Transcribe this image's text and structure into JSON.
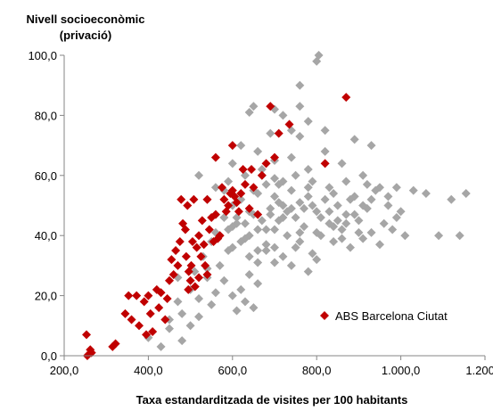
{
  "chart_data": {
    "type": "scatter",
    "title": "",
    "ylabel_line1": "Nivell socioeconòmic",
    "ylabel_line2": "(privació)",
    "xlabel": "Taxa estandarditzada de visites per 100 habitants",
    "xlim": [
      200,
      1200
    ],
    "ylim": [
      0,
      100
    ],
    "x_ticks": [
      {
        "value": 200,
        "label": "200,0"
      },
      {
        "value": 400,
        "label": "400,0"
      },
      {
        "value": 600,
        "label": "600,0"
      },
      {
        "value": 800,
        "label": "800,0"
      },
      {
        "value": 1000,
        "label": "1.000,0"
      },
      {
        "value": 1200,
        "label": "1.200,0"
      }
    ],
    "y_ticks": [
      {
        "value": 0,
        "label": "0,0"
      },
      {
        "value": 20,
        "label": "20,0"
      },
      {
        "value": 40,
        "label": "40,0"
      },
      {
        "value": 60,
        "label": "60,0"
      },
      {
        "value": 80,
        "label": "80,0"
      },
      {
        "value": 100,
        "label": "100,0"
      }
    ],
    "grid": false,
    "legend_position": "bottom-right",
    "series": [
      {
        "key": "others",
        "color": "#a6a6a6",
        "marker": "diamond",
        "points": [
          [
            400,
            6
          ],
          [
            430,
            3
          ],
          [
            450,
            12
          ],
          [
            470,
            18
          ],
          [
            480,
            14
          ],
          [
            500,
            22
          ],
          [
            510,
            28
          ],
          [
            520,
            19
          ],
          [
            530,
            33
          ],
          [
            540,
            26
          ],
          [
            550,
            38
          ],
          [
            560,
            41
          ],
          [
            570,
            30
          ],
          [
            580,
            46
          ],
          [
            590,
            35
          ],
          [
            600,
            50
          ],
          [
            610,
            44
          ],
          [
            620,
            52
          ],
          [
            630,
            39
          ],
          [
            640,
            48
          ],
          [
            650,
            55
          ],
          [
            660,
            42
          ],
          [
            670,
            60
          ],
          [
            680,
            37
          ],
          [
            690,
            47
          ],
          [
            700,
            53
          ],
          [
            710,
            45
          ],
          [
            720,
            58
          ],
          [
            730,
            40
          ],
          [
            740,
            49
          ],
          [
            750,
            36
          ],
          [
            760,
            51
          ],
          [
            770,
            43
          ],
          [
            780,
            56
          ],
          [
            790,
            34
          ],
          [
            800,
            48
          ],
          [
            810,
            40
          ],
          [
            820,
            52
          ],
          [
            830,
            44
          ],
          [
            840,
            38
          ],
          [
            850,
            50
          ],
          [
            860,
            42
          ],
          [
            870,
            47
          ],
          [
            880,
            36
          ],
          [
            890,
            53
          ],
          [
            900,
            45
          ],
          [
            910,
            39
          ],
          [
            920,
            49
          ],
          [
            930,
            41
          ],
          [
            940,
            55
          ],
          [
            950,
            37
          ],
          [
            960,
            44
          ],
          [
            970,
            50
          ],
          [
            980,
            42
          ],
          [
            990,
            46
          ],
          [
            1000,
            48
          ],
          [
            1010,
            40
          ],
          [
            1060,
            54
          ],
          [
            1090,
            40
          ],
          [
            1120,
            52
          ],
          [
            1140,
            40
          ],
          [
            1155,
            54
          ],
          [
            760,
            90
          ],
          [
            800,
            98
          ],
          [
            805,
            100
          ],
          [
            760,
            83
          ],
          [
            780,
            78
          ],
          [
            820,
            75
          ],
          [
            700,
            82
          ],
          [
            720,
            80
          ],
          [
            640,
            81
          ],
          [
            650,
            83
          ],
          [
            690,
            74
          ],
          [
            740,
            75
          ],
          [
            760,
            73
          ],
          [
            600,
            64
          ],
          [
            620,
            70
          ],
          [
            660,
            68
          ],
          [
            700,
            65
          ],
          [
            740,
            66
          ],
          [
            780,
            62
          ],
          [
            820,
            68
          ],
          [
            860,
            64
          ],
          [
            890,
            72
          ],
          [
            930,
            70
          ],
          [
            560,
            56
          ],
          [
            590,
            58
          ],
          [
            630,
            60
          ],
          [
            670,
            62
          ],
          [
            710,
            57
          ],
          [
            750,
            60
          ],
          [
            790,
            58
          ],
          [
            830,
            56
          ],
          [
            870,
            58
          ],
          [
            910,
            60
          ],
          [
            950,
            56
          ],
          [
            990,
            56
          ],
          [
            520,
            60
          ],
          [
            540,
            52
          ],
          [
            560,
            47
          ],
          [
            580,
            55
          ],
          [
            600,
            43
          ],
          [
            620,
            38
          ],
          [
            640,
            33
          ],
          [
            660,
            31
          ],
          [
            680,
            42
          ],
          [
            700,
            36
          ],
          [
            720,
            33
          ],
          [
            740,
            30
          ],
          [
            760,
            41
          ],
          [
            780,
            28
          ],
          [
            800,
            32
          ],
          [
            580,
            25
          ],
          [
            600,
            20
          ],
          [
            620,
            22
          ],
          [
            640,
            27
          ],
          [
            660,
            24
          ],
          [
            680,
            35
          ],
          [
            700,
            31
          ],
          [
            720,
            46
          ],
          [
            610,
            15
          ],
          [
            630,
            18
          ],
          [
            650,
            16
          ],
          [
            550,
            17
          ],
          [
            540,
            29
          ],
          [
            570,
            40
          ],
          [
            590,
            42
          ],
          [
            610,
            46
          ],
          [
            630,
            44
          ],
          [
            650,
            47
          ],
          [
            670,
            45
          ],
          [
            690,
            49
          ],
          [
            710,
            51
          ],
          [
            730,
            48
          ],
          [
            750,
            46
          ],
          [
            770,
            49
          ],
          [
            790,
            50
          ],
          [
            810,
            46
          ],
          [
            830,
            48
          ],
          [
            850,
            45
          ],
          [
            870,
            44
          ],
          [
            890,
            47
          ],
          [
            910,
            50
          ],
          [
            930,
            52
          ],
          [
            970,
            53
          ],
          [
            1030,
            55
          ],
          [
            660,
            54
          ],
          [
            680,
            57
          ],
          [
            700,
            59
          ],
          [
            720,
            50
          ],
          [
            740,
            55
          ],
          [
            780,
            53
          ],
          [
            840,
            54
          ],
          [
            880,
            52
          ],
          [
            920,
            57
          ],
          [
            600,
            36
          ],
          [
            640,
            40
          ],
          [
            660,
            35
          ],
          [
            700,
            42
          ],
          [
            760,
            38
          ],
          [
            800,
            41
          ],
          [
            840,
            43
          ],
          [
            860,
            39
          ],
          [
            900,
            41
          ],
          [
            520,
            13
          ],
          [
            500,
            10
          ],
          [
            560,
            21
          ],
          [
            480,
            5
          ],
          [
            450,
            9
          ],
          [
            470,
            26
          ]
        ]
      },
      {
        "key": "barcelona",
        "name": "ABS Barcelona Ciutat",
        "color": "#c00000",
        "marker": "diamond",
        "points": [
          [
            253,
            7
          ],
          [
            255,
            0
          ],
          [
            262,
            2
          ],
          [
            265,
            1
          ],
          [
            315,
            3
          ],
          [
            322,
            4
          ],
          [
            345,
            14
          ],
          [
            353,
            20
          ],
          [
            360,
            12
          ],
          [
            372,
            20
          ],
          [
            378,
            10
          ],
          [
            390,
            18
          ],
          [
            395,
            7
          ],
          [
            400,
            20
          ],
          [
            405,
            14
          ],
          [
            410,
            8
          ],
          [
            420,
            22
          ],
          [
            425,
            16
          ],
          [
            430,
            21
          ],
          [
            440,
            12
          ],
          [
            445,
            19
          ],
          [
            450,
            25
          ],
          [
            455,
            32
          ],
          [
            460,
            27
          ],
          [
            465,
            35
          ],
          [
            470,
            30
          ],
          [
            475,
            38
          ],
          [
            478,
            52
          ],
          [
            482,
            44
          ],
          [
            488,
            42
          ],
          [
            490,
            33
          ],
          [
            493,
            50
          ],
          [
            496,
            28
          ],
          [
            500,
            25
          ],
          [
            502,
            30
          ],
          [
            505,
            38
          ],
          [
            508,
            52
          ],
          [
            511,
            23
          ],
          [
            515,
            36
          ],
          [
            520,
            40
          ],
          [
            525,
            33
          ],
          [
            528,
            45
          ],
          [
            532,
            37
          ],
          [
            535,
            30
          ],
          [
            540,
            52
          ],
          [
            545,
            42
          ],
          [
            550,
            46
          ],
          [
            555,
            38
          ],
          [
            560,
            47
          ],
          [
            565,
            39
          ],
          [
            570,
            40
          ],
          [
            575,
            56
          ],
          [
            580,
            52
          ],
          [
            585,
            48
          ],
          [
            590,
            50
          ],
          [
            595,
            54
          ],
          [
            600,
            55
          ],
          [
            605,
            53
          ],
          [
            610,
            51
          ],
          [
            615,
            48
          ],
          [
            620,
            54
          ],
          [
            625,
            62
          ],
          [
            630,
            57
          ],
          [
            640,
            49
          ],
          [
            645,
            62
          ],
          [
            650,
            56
          ],
          [
            660,
            47
          ],
          [
            670,
            60
          ],
          [
            690,
            83
          ],
          [
            700,
            66
          ],
          [
            710,
            74
          ],
          [
            735,
            77
          ],
          [
            820,
            64
          ],
          [
            870,
            86
          ],
          [
            600,
            70
          ],
          [
            560,
            66
          ],
          [
            680,
            64
          ],
          [
            540,
            27
          ],
          [
            520,
            26
          ],
          [
            495,
            22
          ]
        ]
      }
    ]
  }
}
